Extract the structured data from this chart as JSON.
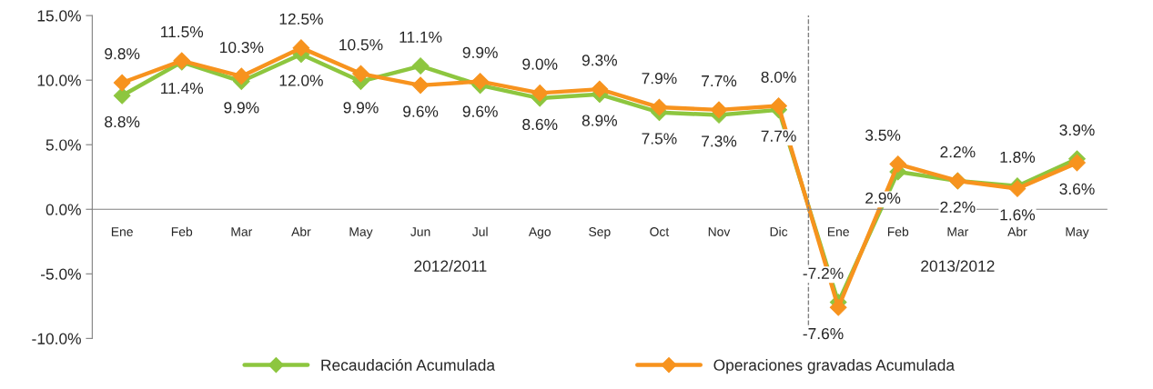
{
  "chart_data": {
    "type": "line",
    "categories": [
      "Ene",
      "Feb",
      "Mar",
      "Abr",
      "May",
      "Jun",
      "Jul",
      "Ago",
      "Sep",
      "Oct",
      "Nov",
      "Dic",
      "Ene",
      "Feb",
      "Mar",
      "Abr",
      "May"
    ],
    "series": [
      {
        "name": "Recaudación Acumulada",
        "color": "#8dc63f",
        "values": [
          8.8,
          11.4,
          9.9,
          12.0,
          9.9,
          11.1,
          9.6,
          8.6,
          8.9,
          7.5,
          7.3,
          7.7,
          -7.2,
          2.9,
          2.2,
          1.8,
          3.9
        ],
        "value_labels": [
          "8.8%",
          "11.4%",
          "9.9%",
          "12.0%",
          "9.9%",
          "11.1%",
          "9.6%",
          "8.6%",
          "8.9%",
          "7.5%",
          "7.3%",
          "7.7%",
          "-7.2%",
          "2.9%",
          "2.2%",
          "1.8%",
          "3.9%"
        ]
      },
      {
        "name": "Operaciones gravadas Acumulada",
        "color": "#f7931e",
        "values": [
          9.8,
          11.5,
          10.3,
          12.5,
          10.5,
          9.6,
          9.9,
          9.0,
          9.3,
          7.9,
          7.7,
          8.0,
          -7.6,
          3.5,
          2.2,
          1.6,
          3.6
        ],
        "value_labels": [
          "9.8%",
          "11.5%",
          "10.3%",
          "12.5%",
          "10.5%",
          "9.6%",
          "9.9%",
          "9.0%",
          "9.3%",
          "7.9%",
          "7.7%",
          "8.0%",
          "-7.6%",
          "3.5%",
          "2.2%",
          "1.6%",
          "3.6%"
        ]
      }
    ],
    "ylim": [
      -10,
      15
    ],
    "yticks": [
      {
        "value": -10,
        "label": "-10.0%"
      },
      {
        "value": -5,
        "label": "-5.0%"
      },
      {
        "value": 0,
        "label": "0.0%"
      },
      {
        "value": 5,
        "label": "5.0%"
      },
      {
        "value": 10,
        "label": "10.0%"
      },
      {
        "value": 15,
        "label": "15.0%"
      }
    ],
    "annotations": [
      "2012/2011",
      "2013/2012"
    ],
    "marker": "diamond",
    "line_style": "solid",
    "grid": false,
    "legend": "bottom"
  }
}
